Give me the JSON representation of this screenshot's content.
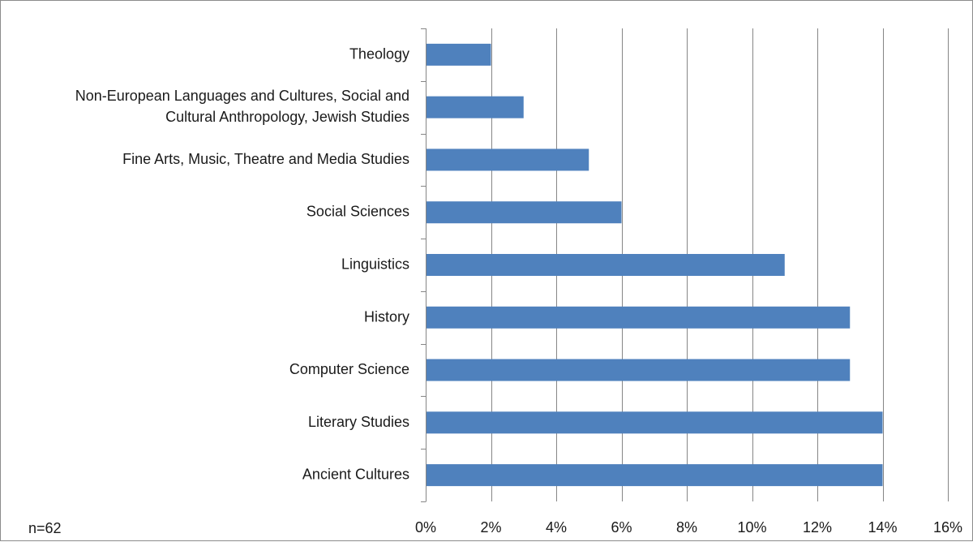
{
  "chart_data": {
    "type": "bar",
    "orientation": "horizontal",
    "categories": [
      "Theology",
      "Non-European Languages and Cultures, Social and Cultural Anthropology, Jewish Studies",
      "Fine Arts, Music, Theatre and Media Studies",
      "Social Sciences",
      "Linguistics",
      "History",
      "Computer Science",
      "Literary Studies",
      "Ancient Cultures"
    ],
    "category_label_lines": [
      [
        "Theology"
      ],
      [
        "Non-European Languages and Cultures, Social and",
        "Cultural Anthropology, Jewish Studies"
      ],
      [
        "Fine Arts, Music, Theatre and Media Studies"
      ],
      [
        "Social Sciences"
      ],
      [
        "Linguistics"
      ],
      [
        "History"
      ],
      [
        "Computer Science"
      ],
      [
        "Literary Studies"
      ],
      [
        "Ancient Cultures"
      ]
    ],
    "values": [
      2,
      3,
      5,
      6,
      11,
      13,
      13,
      14,
      14
    ],
    "value_unit": "%",
    "xlim": [
      0,
      16
    ],
    "xticks": [
      0,
      2,
      4,
      6,
      8,
      10,
      12,
      14,
      16
    ],
    "xtick_labels": [
      "0%",
      "2%",
      "4%",
      "6%",
      "8%",
      "10%",
      "12%",
      "14%",
      "16%"
    ],
    "title": "",
    "xlabel": "",
    "ylabel": "",
    "grid": "vertical",
    "legend": "none",
    "bar_color": "#4f81bd",
    "note": "n=62"
  }
}
